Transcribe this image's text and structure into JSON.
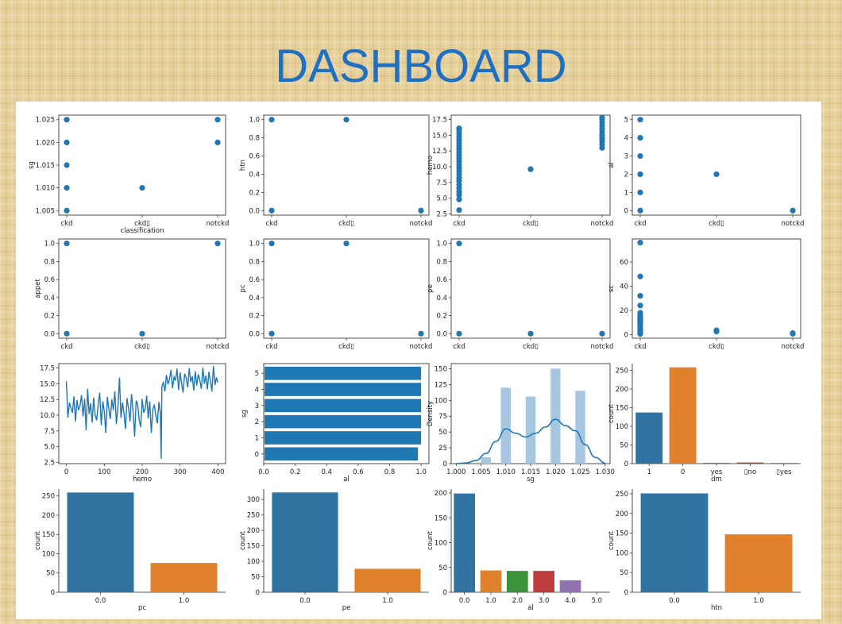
{
  "title": "DASHBOARD",
  "colors": {
    "blue": "#1f77b4",
    "seaborn_blue": "#3274a1",
    "seaborn_orange": "#e1812c",
    "seaborn_green": "#3a923a",
    "seaborn_red": "#c03d3e",
    "seaborn_purple": "#9372b2",
    "seaborn_brown": "#845b53",
    "hist_fill": "#a6c6e2"
  },
  "chart_data": [
    {
      "id": "sg-vs-classification",
      "type": "scatter",
      "xlabel": "classification",
      "ylabel": "sg",
      "categories": [
        "ckd",
        "ckd\t",
        "notckd"
      ],
      "ylim": [
        1.004,
        1.026
      ],
      "yticks": [
        1.005,
        1.01,
        1.015,
        1.02,
        1.025
      ],
      "ytick_labels": [
        "1.005",
        "1.010",
        "1.015",
        "1.020",
        "1.025"
      ],
      "points": [
        [
          0,
          1.005
        ],
        [
          0,
          1.01
        ],
        [
          0,
          1.015
        ],
        [
          0,
          1.02
        ],
        [
          0,
          1.025
        ],
        [
          1,
          1.01
        ],
        [
          2,
          1.02
        ],
        [
          2,
          1.025
        ]
      ]
    },
    {
      "id": "htn-vs-classification",
      "type": "scatter",
      "xlabel": "",
      "ylabel": "htn",
      "categories": [
        "ckd",
        "ckd\t",
        "notckd"
      ],
      "ylim": [
        -0.05,
        1.05
      ],
      "yticks": [
        0,
        0.2,
        0.4,
        0.6,
        0.8,
        1.0
      ],
      "ytick_labels": [
        "0.0",
        "0.2",
        "0.4",
        "0.6",
        "0.8",
        "1.0"
      ],
      "points": [
        [
          0,
          0
        ],
        [
          0,
          1
        ],
        [
          1,
          1
        ],
        [
          2,
          0
        ]
      ]
    },
    {
      "id": "hemo-vs-classification",
      "type": "scatter",
      "xlabel": "",
      "ylabel": "hemo",
      "categories": [
        "ckd",
        "ckd\t",
        "notckd"
      ],
      "ylim": [
        2.3,
        18.2
      ],
      "yticks": [
        2.5,
        5,
        7.5,
        10,
        12.5,
        15,
        17.5
      ],
      "ytick_labels": [
        "2.5",
        "5.0",
        "7.5",
        "10.0",
        "12.5",
        "15.0",
        "17.5"
      ],
      "points": [
        [
          0,
          3.1
        ],
        [
          0,
          4.8
        ],
        [
          0,
          5.5
        ],
        [
          0,
          6.0
        ],
        [
          0,
          6.6
        ],
        [
          0,
          7.1
        ],
        [
          0,
          7.7
        ],
        [
          0,
          8.2
        ],
        [
          0,
          8.8
        ],
        [
          0,
          9.3
        ],
        [
          0,
          9.8
        ],
        [
          0,
          10.3
        ],
        [
          0,
          10.8
        ],
        [
          0,
          11.3
        ],
        [
          0,
          11.8
        ],
        [
          0,
          12.3
        ],
        [
          0,
          12.8
        ],
        [
          0,
          13.3
        ],
        [
          0,
          13.8
        ],
        [
          0,
          14.3
        ],
        [
          0,
          14.8
        ],
        [
          0,
          15.3
        ],
        [
          0,
          15.8
        ],
        [
          0,
          16.1
        ],
        [
          1,
          9.6
        ],
        [
          2,
          13.0
        ],
        [
          2,
          13.5
        ],
        [
          2,
          14.0
        ],
        [
          2,
          14.5
        ],
        [
          2,
          15.0
        ],
        [
          2,
          15.5
        ],
        [
          2,
          16.0
        ],
        [
          2,
          16.5
        ],
        [
          2,
          17.0
        ],
        [
          2,
          17.5
        ],
        [
          2,
          17.8
        ]
      ]
    },
    {
      "id": "al-vs-classification",
      "type": "scatter",
      "xlabel": "",
      "ylabel": "al",
      "categories": [
        "ckd",
        "ckd\t",
        "notckd"
      ],
      "ylim": [
        -0.25,
        5.25
      ],
      "yticks": [
        0,
        1,
        2,
        3,
        4,
        5
      ],
      "ytick_labels": [
        "0",
        "1",
        "2",
        "3",
        "4",
        "5"
      ],
      "points": [
        [
          0,
          0
        ],
        [
          0,
          1
        ],
        [
          0,
          2
        ],
        [
          0,
          3
        ],
        [
          0,
          4
        ],
        [
          0,
          5
        ],
        [
          1,
          2
        ],
        [
          2,
          0
        ]
      ]
    },
    {
      "id": "appet-vs-classification",
      "type": "scatter",
      "xlabel": "",
      "ylabel": "appet",
      "categories": [
        "ckd",
        "ckd\t",
        "notckd"
      ],
      "ylim": [
        -0.05,
        1.05
      ],
      "yticks": [
        0,
        0.2,
        0.4,
        0.6,
        0.8,
        1.0
      ],
      "ytick_labels": [
        "0.0",
        "0.2",
        "0.4",
        "0.6",
        "0.8",
        "1.0"
      ],
      "points": [
        [
          0,
          0
        ],
        [
          0,
          1
        ],
        [
          1,
          0
        ],
        [
          2,
          1
        ]
      ]
    },
    {
      "id": "pc-vs-classification",
      "type": "scatter",
      "xlabel": "",
      "ylabel": "pc",
      "categories": [
        "ckd",
        "ckd\t",
        "notckd"
      ],
      "ylim": [
        -0.05,
        1.05
      ],
      "yticks": [
        0,
        0.2,
        0.4,
        0.6,
        0.8,
        1.0
      ],
      "ytick_labels": [
        "0.0",
        "0.2",
        "0.4",
        "0.6",
        "0.8",
        "1.0"
      ],
      "points": [
        [
          0,
          0
        ],
        [
          0,
          1
        ],
        [
          1,
          1
        ],
        [
          2,
          0
        ]
      ]
    },
    {
      "id": "pe-vs-classification",
      "type": "scatter",
      "xlabel": "",
      "ylabel": "pe",
      "categories": [
        "ckd",
        "ckd\t",
        "notckd"
      ],
      "ylim": [
        -0.05,
        1.05
      ],
      "yticks": [
        0,
        0.2,
        0.4,
        0.6,
        0.8,
        1.0
      ],
      "ytick_labels": [
        "0.0",
        "0.2",
        "0.4",
        "0.6",
        "0.8",
        "1.0"
      ],
      "points": [
        [
          0,
          0
        ],
        [
          0,
          1
        ],
        [
          1,
          0
        ],
        [
          2,
          0
        ]
      ]
    },
    {
      "id": "sc-vs-classification",
      "type": "scatter",
      "xlabel": "",
      "ylabel": "sc",
      "categories": [
        "ckd",
        "ckd\t",
        "notckd"
      ],
      "ylim": [
        -3,
        79
      ],
      "yticks": [
        0,
        20,
        40,
        60
      ],
      "ytick_labels": [
        "0",
        "20",
        "40",
        "60"
      ],
      "points": [
        [
          0,
          0.5
        ],
        [
          0,
          1
        ],
        [
          0,
          2
        ],
        [
          0,
          3
        ],
        [
          0,
          4
        ],
        [
          0,
          5
        ],
        [
          0,
          6
        ],
        [
          0,
          7
        ],
        [
          0,
          8
        ],
        [
          0,
          9
        ],
        [
          0,
          10
        ],
        [
          0,
          11
        ],
        [
          0,
          12
        ],
        [
          0,
          13
        ],
        [
          0,
          14
        ],
        [
          0,
          15
        ],
        [
          0,
          16
        ],
        [
          0,
          17
        ],
        [
          0,
          18
        ],
        [
          0,
          24
        ],
        [
          0,
          32
        ],
        [
          0,
          48
        ],
        [
          0,
          76
        ],
        [
          1,
          2.5
        ],
        [
          1,
          3.5
        ],
        [
          2,
          0.6
        ],
        [
          2,
          1.2
        ]
      ]
    },
    {
      "id": "hemo-line",
      "type": "line",
      "xlabel": "hemo",
      "ylabel": "",
      "xlim": [
        -20,
        420
      ],
      "ylim": [
        2.3,
        18.2
      ],
      "xticks": [
        0,
        100,
        200,
        300,
        400
      ],
      "xtick_labels": [
        "0",
        "100",
        "200",
        "300",
        "400"
      ],
      "yticks": [
        2.5,
        5,
        7.5,
        10,
        12.5,
        15,
        17.5
      ],
      "ytick_labels": [
        "2.5",
        "5.0",
        "7.5",
        "10.0",
        "12.5",
        "15.0",
        "17.5"
      ],
      "x": [
        0,
        4,
        8,
        12,
        16,
        20,
        24,
        28,
        32,
        36,
        40,
        44,
        48,
        52,
        56,
        60,
        64,
        68,
        72,
        76,
        80,
        84,
        88,
        92,
        96,
        100,
        104,
        108,
        112,
        116,
        120,
        124,
        128,
        132,
        136,
        140,
        144,
        148,
        152,
        156,
        160,
        164,
        168,
        172,
        176,
        180,
        184,
        188,
        192,
        196,
        200,
        204,
        208,
        212,
        216,
        220,
        224,
        228,
        232,
        236,
        240,
        244,
        248,
        250,
        252,
        256,
        260,
        264,
        268,
        272,
        276,
        280,
        284,
        288,
        292,
        296,
        300,
        304,
        308,
        312,
        316,
        320,
        324,
        328,
        332,
        336,
        340,
        344,
        348,
        352,
        356,
        360,
        364,
        368,
        372,
        376,
        380,
        384,
        388,
        392,
        396,
        399
      ],
      "y": [
        15.4,
        9.6,
        12.0,
        11.2,
        10.4,
        13.0,
        9.0,
        12.4,
        10.8,
        11.5,
        13.2,
        9.8,
        12.6,
        7.6,
        14.2,
        10.2,
        11.9,
        8.8,
        12.8,
        10.0,
        9.2,
        11.6,
        13.6,
        8.4,
        12.2,
        10.6,
        7.2,
        12.9,
        11.0,
        9.4,
        12.5,
        10.8,
        13.8,
        8.6,
        11.4,
        16.0,
        9.6,
        12.0,
        10.3,
        7.8,
        12.7,
        11.1,
        9.0,
        13.4,
        10.6,
        6.6,
        12.3,
        11.8,
        9.3,
        8.1,
        12.6,
        10.4,
        11.0,
        13.1,
        9.5,
        12.2,
        7.2,
        10.9,
        11.7,
        9.9,
        8.7,
        12.1,
        10.3,
        3.1,
        14.6,
        15.2,
        13.8,
        16.4,
        14.9,
        15.8,
        17.2,
        14.3,
        16.1,
        15.5,
        17.4,
        14.0,
        16.8,
        15.1,
        13.6,
        16.6,
        15.9,
        14.4,
        17.5,
        15.3,
        16.2,
        13.9,
        17.0,
        14.7,
        16.5,
        15.6,
        14.2,
        17.6,
        15.0,
        16.3,
        14.1,
        16.9,
        15.4,
        13.8,
        17.8,
        14.8,
        16.0,
        15.2
      ]
    },
    {
      "id": "sg-vs-al-barh",
      "type": "bar",
      "orientation": "horizontal",
      "xlabel": "al",
      "ylabel": "sg",
      "categories": [
        "0",
        "1",
        "2",
        "3",
        "4",
        "5"
      ],
      "values": [
        0.98,
        1.0,
        1.0,
        1.0,
        1.0,
        1.0
      ],
      "xlim": [
        0,
        1.05
      ],
      "xticks": [
        0,
        0.2,
        0.4,
        0.6,
        0.8,
        1.0
      ],
      "xtick_labels": [
        "0.0",
        "0.2",
        "0.4",
        "0.6",
        "0.8",
        "1.0"
      ]
    },
    {
      "id": "sg-density",
      "type": "bar",
      "subtype": "histogram-kde",
      "xlabel": "sg",
      "ylabel": "Density",
      "bins": [
        [
          1.005,
          1.007,
          10
        ],
        [
          1.009,
          1.011,
          120
        ],
        [
          1.014,
          1.016,
          106
        ],
        [
          1.019,
          1.021,
          150
        ],
        [
          1.024,
          1.026,
          115
        ]
      ],
      "kde_x": [
        1.0,
        1.002,
        1.004,
        1.006,
        1.008,
        1.01,
        1.012,
        1.014,
        1.016,
        1.018,
        1.02,
        1.022,
        1.024,
        1.026,
        1.028,
        1.03
      ],
      "kde_y": [
        0,
        1,
        5,
        16,
        35,
        55,
        48,
        42,
        48,
        58,
        70,
        60,
        52,
        30,
        10,
        1
      ],
      "xlim": [
        0.999,
        1.031
      ],
      "ylim": [
        0,
        158
      ],
      "xticks": [
        1.0,
        1.005,
        1.01,
        1.015,
        1.02,
        1.025,
        1.03
      ],
      "xtick_labels": [
        "1.000",
        "1.005",
        "1.010",
        "1.015",
        "1.020",
        "1.025",
        "1.030"
      ],
      "yticks": [
        0,
        25,
        50,
        75,
        100,
        125,
        150
      ],
      "ytick_labels": [
        "0",
        "25",
        "50",
        "75",
        "100",
        "125",
        "150"
      ]
    },
    {
      "id": "dm-count",
      "type": "bar",
      "xlabel": "dm",
      "ylabel": "count",
      "categories": [
        "1",
        "0",
        "yes",
        "\tno",
        "\tyes"
      ],
      "values": [
        137,
        258,
        2,
        3,
        2
      ],
      "ylim": [
        0,
        268
      ],
      "yticks": [
        0,
        50,
        100,
        150,
        200,
        250
      ],
      "ytick_labels": [
        "0",
        "50",
        "100",
        "150",
        "200",
        "250"
      ]
    },
    {
      "id": "pc-count",
      "type": "bar",
      "xlabel": "pc",
      "ylabel": "count",
      "categories": [
        "0.0",
        "1.0"
      ],
      "values": [
        259,
        76
      ],
      "ylim": [
        0,
        268
      ],
      "yticks": [
        0,
        50,
        100,
        150,
        200,
        250
      ],
      "ytick_labels": [
        "0",
        "50",
        "100",
        "150",
        "200",
        "250"
      ]
    },
    {
      "id": "pe-count",
      "type": "bar",
      "xlabel": "pe",
      "ylabel": "count",
      "categories": [
        "0.0",
        "1.0"
      ],
      "values": [
        323,
        76
      ],
      "ylim": [
        0,
        334
      ],
      "yticks": [
        0,
        50,
        100,
        150,
        200,
        250,
        300
      ],
      "ytick_labels": [
        "0",
        "50",
        "100",
        "150",
        "200",
        "250",
        "300"
      ]
    },
    {
      "id": "al-count",
      "type": "bar",
      "xlabel": "al",
      "ylabel": "count",
      "categories": [
        "0.0",
        "1.0",
        "2.0",
        "3.0",
        "4.0",
        "5.0"
      ],
      "values": [
        199,
        44,
        43,
        43,
        24,
        1
      ],
      "ylim": [
        0,
        208
      ],
      "yticks": [
        0,
        50,
        100,
        150,
        200
      ],
      "ytick_labels": [
        "0",
        "50",
        "100",
        "150",
        "200"
      ]
    },
    {
      "id": "htn-count",
      "type": "bar",
      "xlabel": "htn",
      "ylabel": "count",
      "categories": [
        "0.0",
        "1.0"
      ],
      "values": [
        251,
        147
      ],
      "ylim": [
        0,
        262
      ],
      "yticks": [
        0,
        50,
        100,
        150,
        200,
        250
      ],
      "ytick_labels": [
        "0",
        "50",
        "100",
        "150",
        "200",
        "250"
      ]
    }
  ]
}
